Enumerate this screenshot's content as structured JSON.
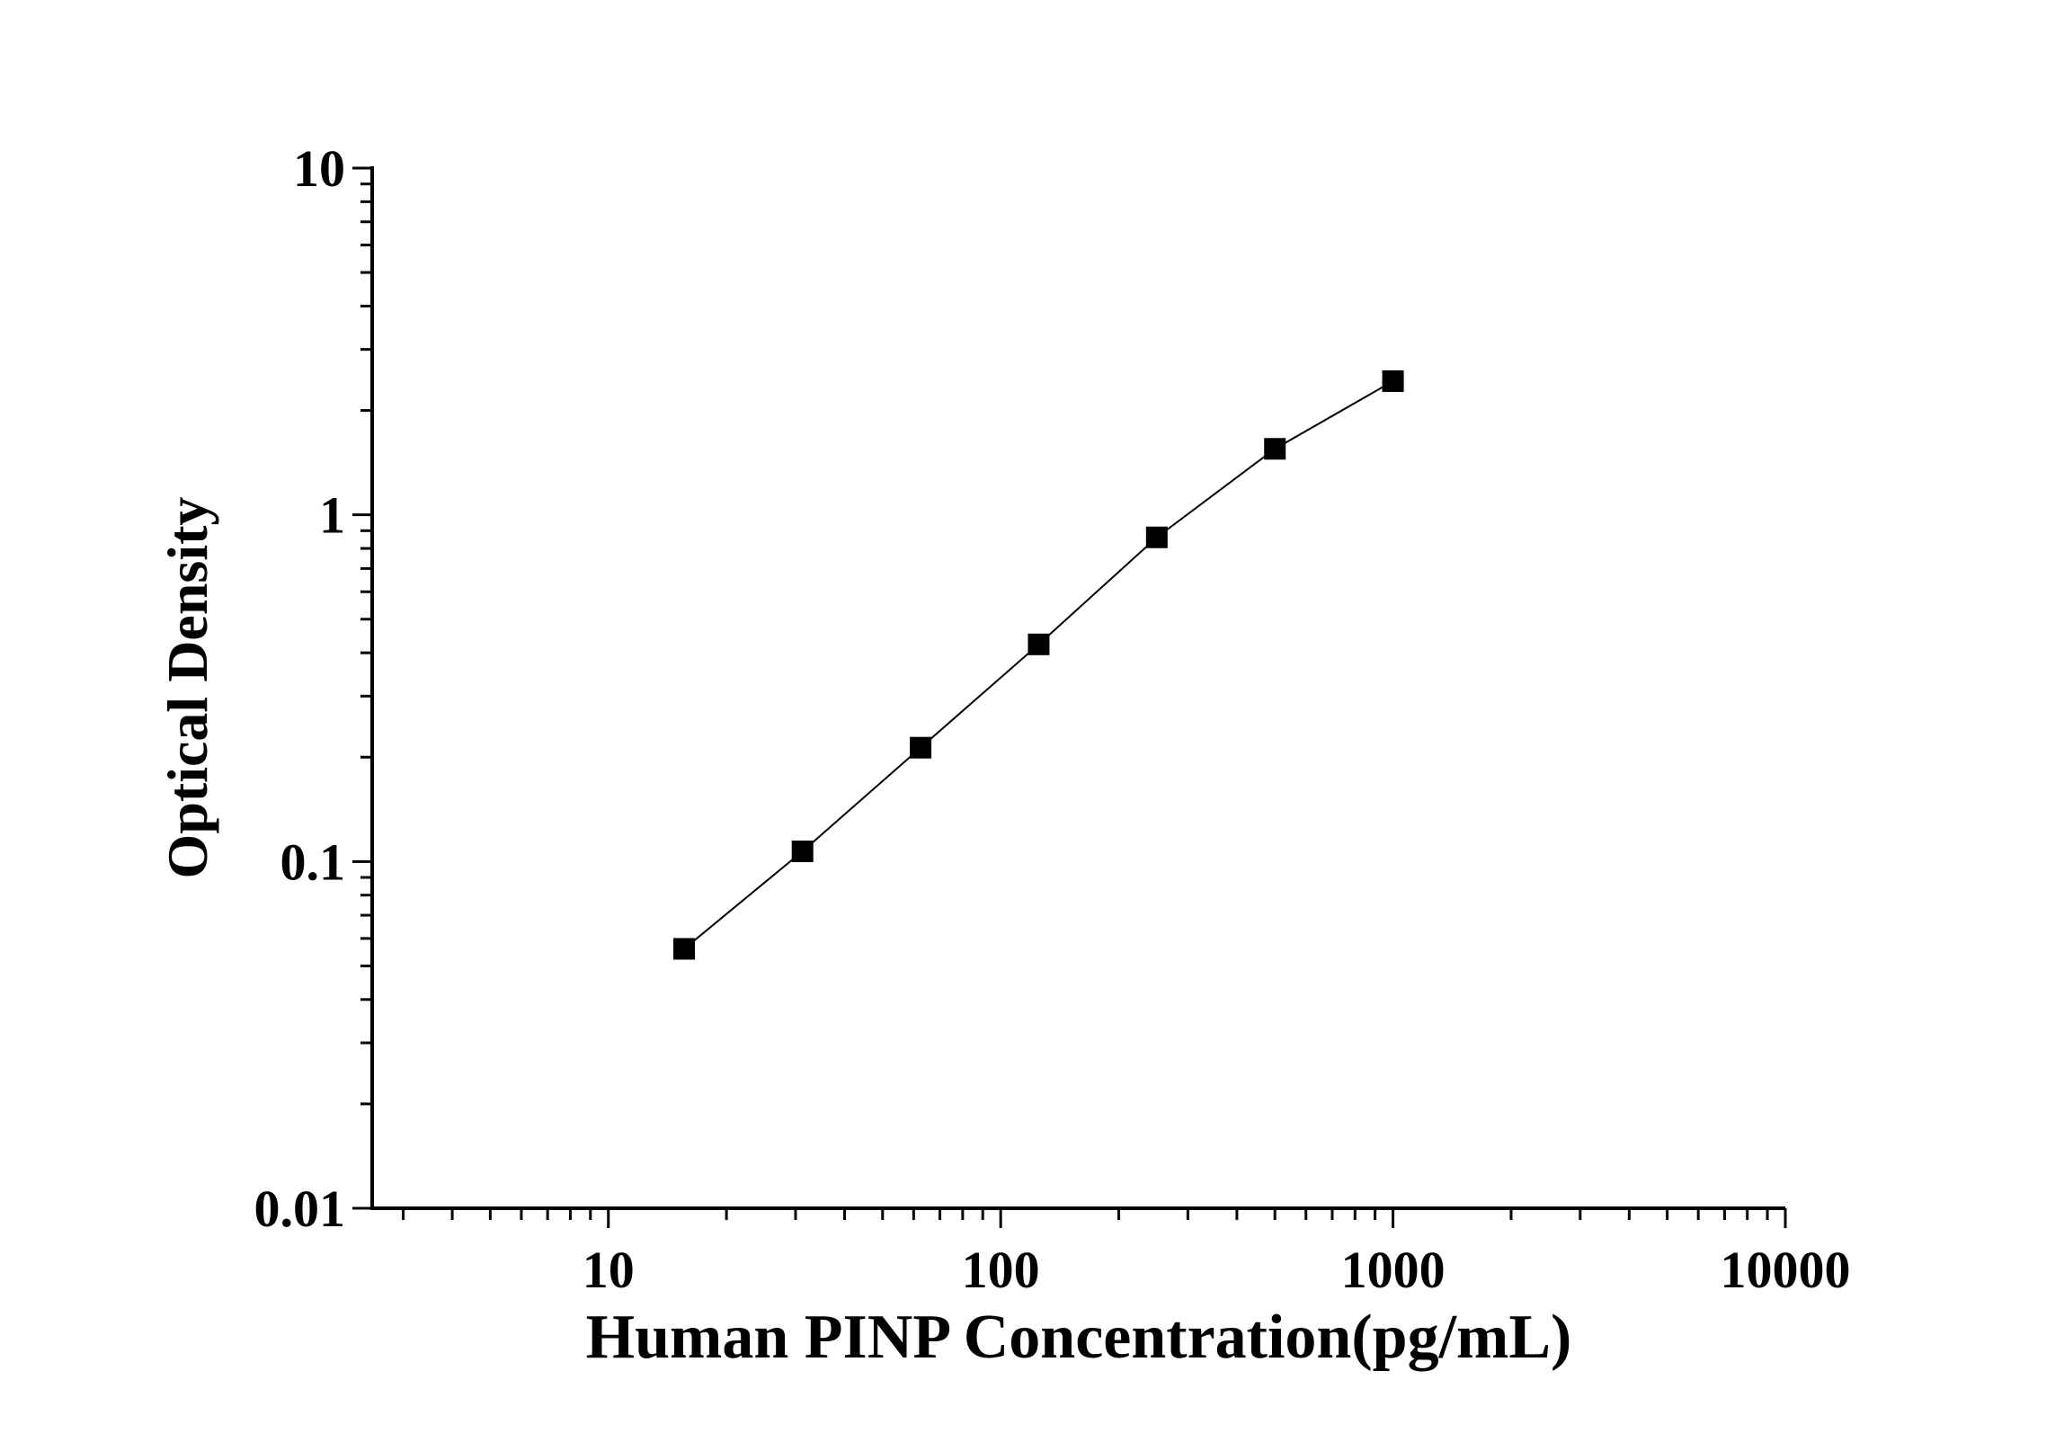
{
  "chart_data": {
    "type": "line",
    "title": "",
    "xlabel": "Human PINP Concentration(pg/mL)",
    "ylabel": "Optical Density",
    "x_scale": "log",
    "y_scale": "log",
    "xlim": [
      2.5,
      10000
    ],
    "ylim": [
      0.01,
      10
    ],
    "x_ticks": [
      10,
      100,
      1000,
      10000
    ],
    "x_tick_labels": [
      "10",
      "100",
      "1000",
      "10000"
    ],
    "y_ticks": [
      0.01,
      0.1,
      1,
      10
    ],
    "y_tick_labels": [
      "0.01",
      "0.1",
      "1",
      "10"
    ],
    "grid": false,
    "legend": "none",
    "marker": "square",
    "color": "#000000",
    "series": [
      {
        "x": [
          15.6,
          31.25,
          62.5,
          125,
          250,
          500,
          1000
        ],
        "y": [
          0.056,
          0.107,
          0.213,
          0.423,
          0.861,
          1.55,
          2.43
        ]
      }
    ]
  }
}
